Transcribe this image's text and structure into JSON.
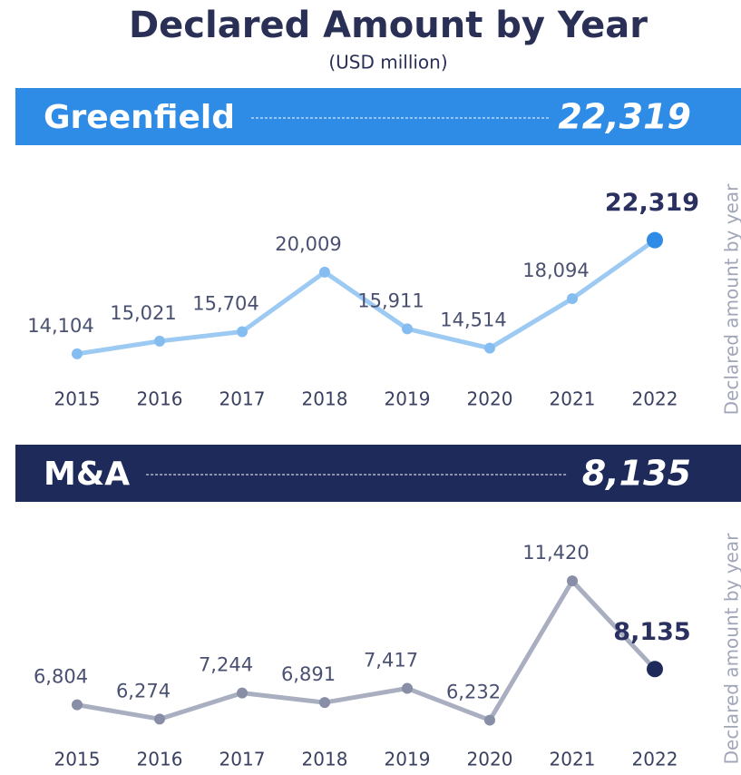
{
  "title": "Declared Amount by Year",
  "subtitle": "(USD million)",
  "chart_data": [
    {
      "type": "line",
      "title": "Greenfield",
      "headline": "22,319",
      "y_label": "Declared amount by year",
      "banner_color": "#2e8be6",
      "categories": [
        "2015",
        "2016",
        "2017",
        "2018",
        "2019",
        "2020",
        "2021",
        "2022"
      ],
      "values": [
        14104,
        15021,
        15704,
        20009,
        15911,
        14514,
        18094,
        22319
      ],
      "value_labels": [
        "14,104",
        "15,021",
        "15,704",
        "20,009",
        "15,911",
        "14,514",
        "18,094",
        "22,319"
      ],
      "color": "#9ccaf2",
      "marker_color": "#86bdf0",
      "highlight_color": "#2e8be6",
      "ylim": [
        12000,
        24000
      ]
    },
    {
      "type": "line",
      "title": "M&A",
      "headline": "8,135",
      "y_label": "Declared amount by year",
      "banner_color": "#1e2a5a",
      "categories": [
        "2015",
        "2016",
        "2017",
        "2018",
        "2019",
        "2020",
        "2021",
        "2022"
      ],
      "values": [
        6804,
        6274,
        7244,
        6891,
        7417,
        6232,
        11420,
        8135
      ],
      "value_labels": [
        "6,804",
        "6,274",
        "7,244",
        "6,891",
        "7,417",
        "6,232",
        "11,420",
        "8,135"
      ],
      "color": "#a9afc0",
      "marker_color": "#878ea6",
      "highlight_color": "#1e2a5a",
      "ylim": [
        5000,
        12000
      ]
    }
  ]
}
